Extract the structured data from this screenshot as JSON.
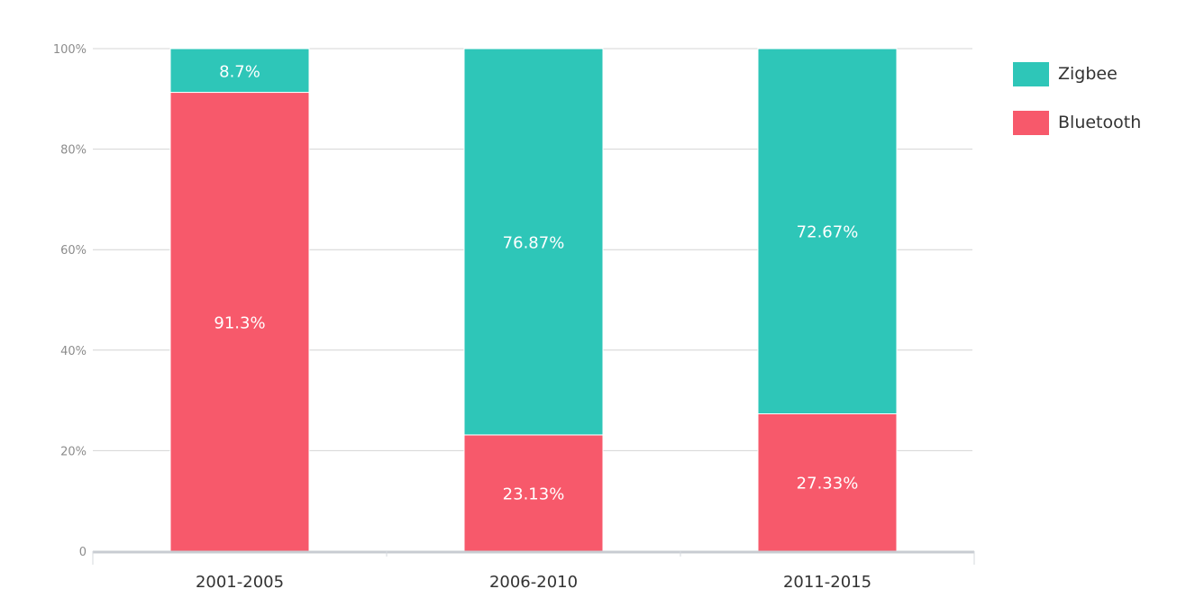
{
  "chart_data": {
    "type": "bar",
    "stacked": true,
    "categories": [
      "2001-2005",
      "2006-2010",
      "2011-2015"
    ],
    "series": [
      {
        "name": "Bluetooth",
        "values": [
          91.3,
          23.13,
          27.33
        ],
        "labels": [
          "91.3%",
          "23.13%",
          "27.33%"
        ],
        "color": "#F7596B"
      },
      {
        "name": "Zigbee",
        "values": [
          8.7,
          76.87,
          72.67
        ],
        "labels": [
          "8.7%",
          "76.87%",
          "72.67%"
        ],
        "color": "#2EC6B8"
      }
    ],
    "ylim": [
      0,
      100
    ],
    "yticks": [
      0,
      20,
      40,
      60,
      80,
      100
    ],
    "ytick_labels": [
      "0",
      "20%",
      "40%",
      "60%",
      "80%",
      "100%"
    ],
    "grid": true,
    "legend_position": "top-right",
    "title": "",
    "xlabel": "",
    "ylabel": ""
  },
  "legend": {
    "items": [
      {
        "label": "Zigbee",
        "color": "#2EC6B8"
      },
      {
        "label": "Bluetooth",
        "color": "#F7596B"
      }
    ]
  }
}
